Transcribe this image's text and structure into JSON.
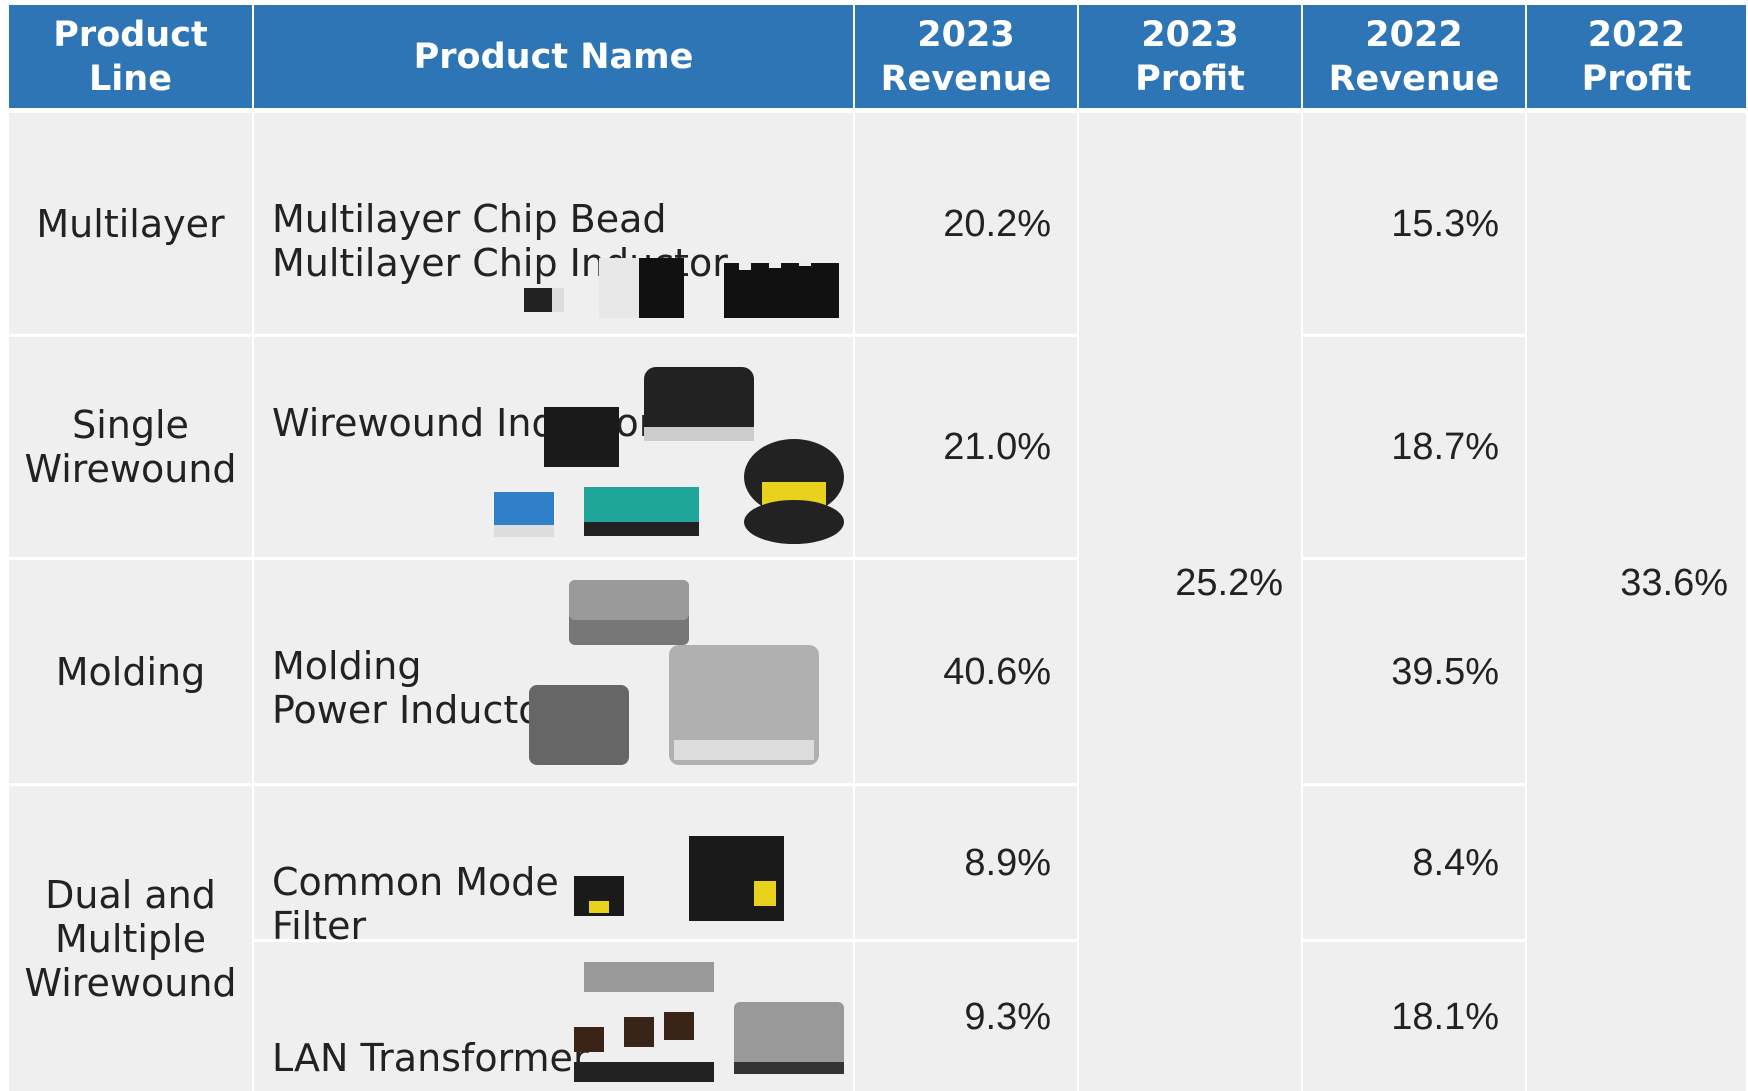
{
  "table": {
    "header": [
      "Product\nLine",
      "Product Name",
      "2023\nRevenue",
      "2023\nProfit",
      "2022\nRevenue",
      "2022\nProfit"
    ],
    "rows": [
      {
        "line": "Multilayer",
        "products": [
          {
            "name": "Multilayer Chip Bead\nMultilayer Chip Inductor",
            "revenue_2023": "20.2%",
            "revenue_2022": "15.3%"
          }
        ]
      },
      {
        "line": "Single\nWirewound",
        "products": [
          {
            "name": "Wirewound Inductor",
            "revenue_2023": "21.0%",
            "revenue_2022": "18.7%"
          }
        ]
      },
      {
        "line": "Molding",
        "products": [
          {
            "name": "Molding\nPower Inductor",
            "revenue_2023": "40.6%",
            "revenue_2022": "39.5%"
          }
        ]
      },
      {
        "line": "Dual and\nMultiple\nWirewound",
        "products": [
          {
            "name": "Common Mode\nFilter",
            "revenue_2023": "8.9%",
            "revenue_2022": "8.4%"
          },
          {
            "name": "LAN Transformer",
            "revenue_2023": "9.3%",
            "revenue_2022": "18.1%"
          }
        ]
      }
    ],
    "profit_2023": "25.2%",
    "profit_2022": "33.6%"
  }
}
